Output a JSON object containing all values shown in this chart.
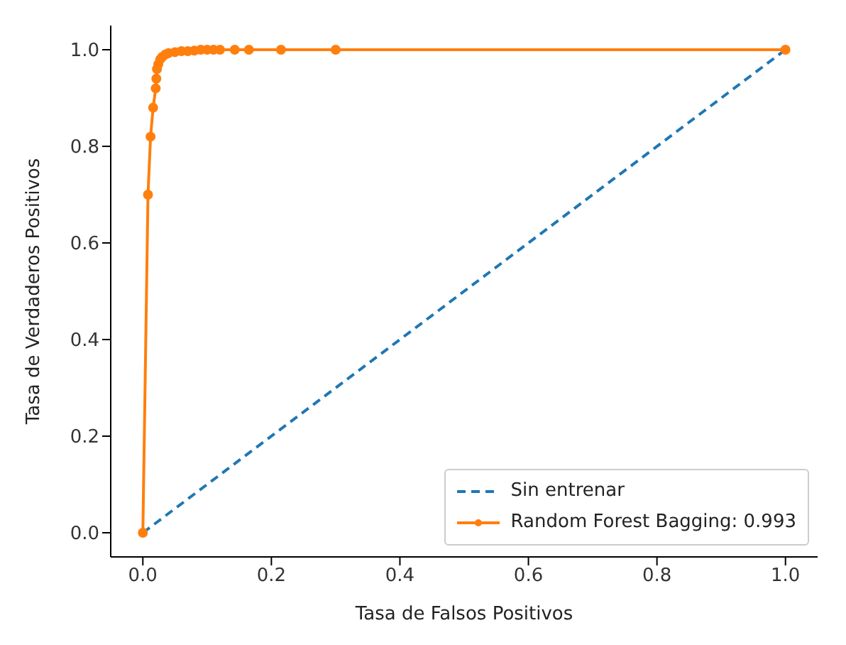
{
  "chart_data": {
    "type": "line",
    "xlabel": "Tasa de Falsos Positivos",
    "ylabel": "Tasa de Verdaderos Positivos",
    "xlim": [
      -0.05,
      1.05
    ],
    "ylim": [
      -0.05,
      1.05
    ],
    "xticks": [
      {
        "value": 0,
        "label": "0.0"
      },
      0.2,
      0.4,
      0.6,
      0.8,
      {
        "value": 1,
        "label": "1.0"
      }
    ],
    "yticks": [
      {
        "value": 0,
        "label": "0.0"
      },
      0.2,
      0.4,
      0.6,
      0.8,
      {
        "value": 1,
        "label": "1.0"
      }
    ],
    "grid": false,
    "legend": "bottom right",
    "series": [
      {
        "name": "Sin entrenar",
        "color": "#1f77b4",
        "line_style": "dashed",
        "marker": "none",
        "x": [
          0,
          1
        ],
        "values": [
          0,
          1
        ]
      },
      {
        "name": "Random Forest Bagging: 0.993",
        "color": "#ff7f0e",
        "line_style": "solid",
        "marker": "circle",
        "x": [
          0,
          0.008,
          0.012,
          0.016,
          0.02,
          0.021,
          0.022,
          0.024,
          0.027,
          0.03,
          0.035,
          0.04,
          0.05,
          0.06,
          0.07,
          0.08,
          0.09,
          0.1,
          0.11,
          0.12,
          0.143,
          0.165,
          0.215,
          0.3,
          1
        ],
        "values": [
          0,
          0.7,
          0.82,
          0.88,
          0.92,
          0.94,
          0.96,
          0.97,
          0.98,
          0.985,
          0.99,
          0.993,
          0.995,
          0.997,
          0.997,
          0.998,
          1,
          1,
          1,
          1,
          1,
          1,
          1,
          1,
          1
        ]
      }
    ]
  }
}
